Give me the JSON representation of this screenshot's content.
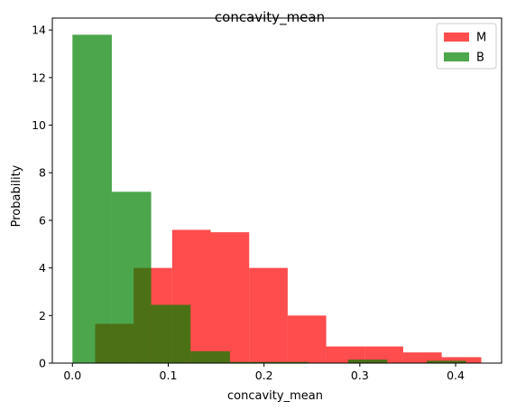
{
  "chart_data": {
    "type": "bar",
    "title": "concavity_mean",
    "xlabel": "concavity_mean",
    "ylabel": "Probability",
    "xlim": [
      -0.021,
      0.448
    ],
    "ylim": [
      0,
      14.5
    ],
    "xticks": [
      0.0,
      0.1,
      0.2,
      0.3,
      0.4
    ],
    "xtick_labels": [
      "0.0",
      "0.1",
      "0.2",
      "0.3",
      "0.4"
    ],
    "yticks": [
      0,
      2,
      4,
      6,
      8,
      10,
      12,
      14
    ],
    "ytick_labels": [
      "0",
      "2",
      "4",
      "6",
      "8",
      "10",
      "12",
      "14"
    ],
    "grid": false,
    "legend": {
      "position": "top-right"
    },
    "series": [
      {
        "name": "M",
        "color": "#ff0000",
        "opacity": 0.7,
        "bin_edges": [
          0.0237,
          0.0639,
          0.1041,
          0.1443,
          0.1845,
          0.2247,
          0.2649,
          0.3051,
          0.3453,
          0.3855,
          0.4268
        ],
        "values": [
          1.65,
          4.0,
          5.6,
          5.5,
          4.0,
          2.0,
          0.7,
          0.7,
          0.45,
          0.25
        ]
      },
      {
        "name": "B",
        "color": "#008000",
        "opacity": 0.7,
        "bin_edges": [
          0.0,
          0.0411,
          0.0822,
          0.1233,
          0.1644,
          0.2055,
          0.2466,
          0.2877,
          0.3288,
          0.3699,
          0.411
        ],
        "values": [
          13.8,
          7.2,
          2.45,
          0.5,
          0.05,
          0.05,
          0.0,
          0.15,
          0.0,
          0.1
        ]
      }
    ]
  }
}
